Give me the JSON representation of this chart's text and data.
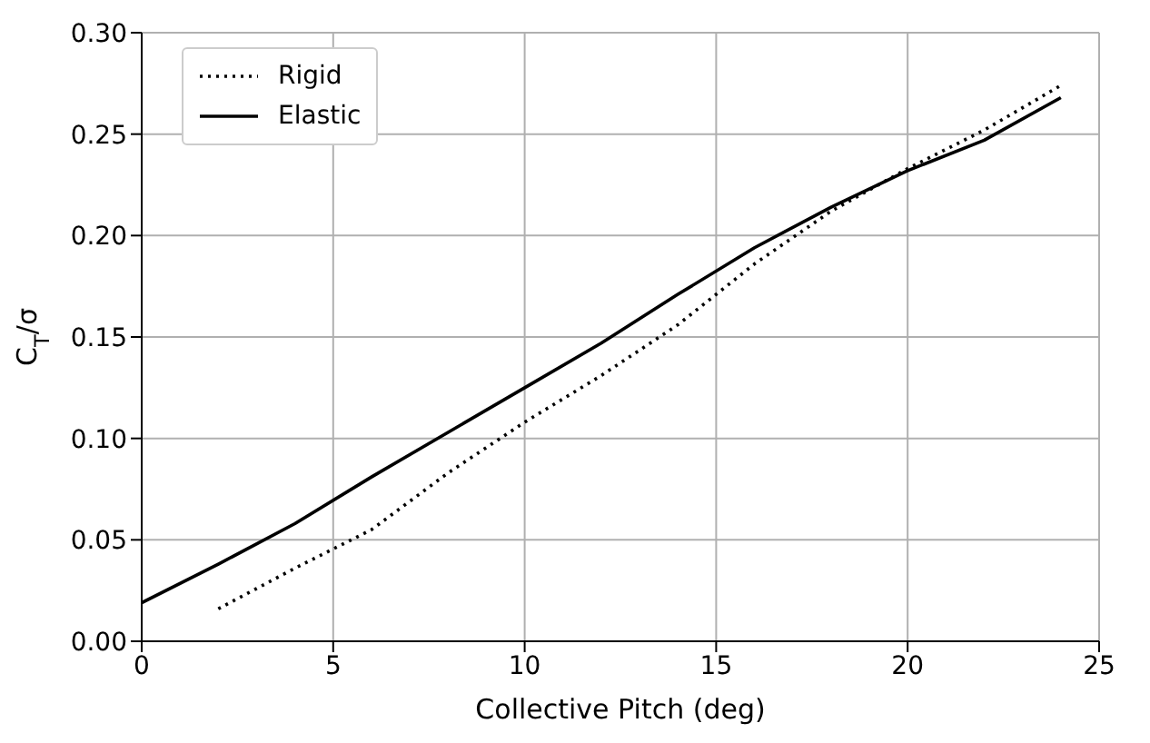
{
  "chart_data": {
    "type": "line",
    "xlabel": "Collective Pitch (deg)",
    "ylabel": "C$_{T}$/σ",
    "xlim": [
      0,
      25
    ],
    "xticks": [
      0,
      5,
      10,
      15,
      20,
      25
    ],
    "ylim": [
      0,
      0.3
    ],
    "yticks": [
      {
        "value": 0,
        "label": "0.00"
      },
      {
        "value": 0.05,
        "label": "0.05"
      },
      {
        "value": 0.1,
        "label": "0.10"
      },
      {
        "value": 0.15,
        "label": "0.15"
      },
      {
        "value": 0.2,
        "label": "0.20"
      },
      {
        "value": 0.25,
        "label": "0.25"
      },
      {
        "value": 0.3,
        "label": "0.30"
      }
    ],
    "grid": true,
    "legend": "top left",
    "marker": "none",
    "series": [
      {
        "name": "Rigid",
        "color": "#000000",
        "line_style": "dotted",
        "x": [
          2,
          4,
          6,
          8,
          10,
          12,
          14,
          16,
          18,
          20,
          22,
          24
        ],
        "values": [
          0.016,
          0.036,
          0.055,
          0.083,
          0.108,
          0.131,
          0.156,
          0.186,
          0.212,
          0.233,
          0.252,
          0.274
        ]
      },
      {
        "name": "Elastic",
        "color": "#000000",
        "line_style": "solid",
        "x": [
          0,
          2,
          4,
          6,
          8,
          10,
          12,
          14,
          16,
          18,
          20,
          22,
          24
        ],
        "values": [
          0.019,
          0.038,
          0.058,
          0.081,
          0.103,
          0.125,
          0.147,
          0.171,
          0.194,
          0.214,
          0.232,
          0.247,
          0.268
        ]
      }
    ]
  }
}
